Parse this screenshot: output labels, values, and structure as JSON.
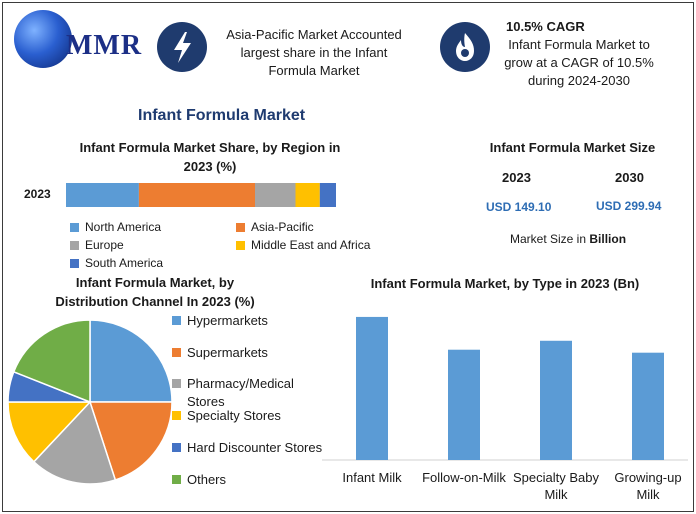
{
  "brand": {
    "name": "MMR"
  },
  "header": {
    "info1": {
      "line1": "Asia-Pacific Market Accounted",
      "line2": "largest share in the Infant",
      "line3": "Formula Market"
    },
    "info2": {
      "heading": "10.5% CAGR",
      "line1": "Infant Formula Market to",
      "line2": "grow at a CAGR of 10.5%",
      "line3": "during 2024-2030"
    }
  },
  "main_title": "Infant Formula Market",
  "market_size": {
    "title": "Infant Formula Market Size",
    "years": [
      "2023",
      "2030"
    ],
    "values": [
      "USD 149.10",
      "USD 299.94"
    ],
    "note_prefix": "Market Size in ",
    "note_unit": "Billion"
  },
  "chart_data": [
    {
      "type": "bar",
      "orientation": "horizontal-stacked",
      "title_line1": "Infant Formula Market Share, by Region in",
      "title_line2": "2023 (%)",
      "categories": [
        "2023"
      ],
      "series": [
        {
          "name": "North America",
          "values": [
            27
          ],
          "color": "#5b9bd5"
        },
        {
          "name": "Asia-Pacific",
          "values": [
            43
          ],
          "color": "#ed7d31"
        },
        {
          "name": "Europe",
          "values": [
            15
          ],
          "color": "#a5a5a5"
        },
        {
          "name": "Middle East and Africa",
          "values": [
            9
          ],
          "color": "#ffc000"
        },
        {
          "name": "South America",
          "values": [
            6
          ],
          "color": "#4472c4"
        }
      ],
      "xlim": [
        0,
        100
      ]
    },
    {
      "type": "pie",
      "title_line1": "Infant Formula Market, by",
      "title_line2": "Distribution Channel In 2023 (%)",
      "slices": [
        {
          "name": "Hypermarkets",
          "value": 25,
          "color": "#5b9bd5"
        },
        {
          "name": "Supermarkets",
          "value": 20,
          "color": "#ed7d31"
        },
        {
          "name": "Pharmacy/Medical Stores",
          "label_line1": "Pharmacy/Medical",
          "label_line2": "Stores",
          "value": 17,
          "color": "#a5a5a5"
        },
        {
          "name": "Specialty Stores",
          "value": 13,
          "color": "#ffc000"
        },
        {
          "name": "Hard Discounter Stores",
          "value": 6,
          "color": "#4472c4"
        },
        {
          "name": "Others",
          "value": 19,
          "color": "#70ad47"
        }
      ]
    },
    {
      "type": "bar",
      "title": "Infant Formula Market, by Type in 2023 (Bn)",
      "categories": [
        "Infant Milk",
        "Follow-on-Milk",
        "Specialty Baby Milk",
        "Growing-up Milk"
      ],
      "category_lines": [
        [
          "Infant Milk"
        ],
        [
          "Follow-on-Milk"
        ],
        [
          "Specialty Baby",
          "Milk"
        ],
        [
          "Growing-up",
          "Milk"
        ]
      ],
      "values": [
        48,
        37,
        40,
        36
      ],
      "ylim": [
        0,
        52
      ],
      "color": "#5b9bd5"
    }
  ]
}
